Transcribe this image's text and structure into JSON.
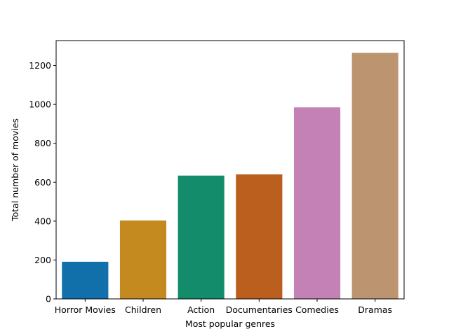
{
  "chart_data": {
    "type": "bar",
    "title": "",
    "xlabel": "Most popular genres",
    "ylabel": "Total number of movies",
    "categories": [
      "Horror Movies",
      "Children",
      "Action",
      "Documentaries",
      "Comedies",
      "Dramas"
    ],
    "values": [
      191,
      403,
      634,
      640,
      985,
      1265
    ],
    "ylim": [
      0,
      1328
    ],
    "yticks": [
      0,
      200,
      400,
      600,
      800,
      1000,
      1200
    ],
    "ytick_labels": [
      "0",
      "200",
      "400",
      "600",
      "800",
      "1000",
      "1200"
    ],
    "colors": [
      "#1170aa",
      "#c4891f",
      "#138c6b",
      "#bb5f1f",
      "#c381b5",
      "#bd9470"
    ],
    "grid": false,
    "legend": "none"
  }
}
